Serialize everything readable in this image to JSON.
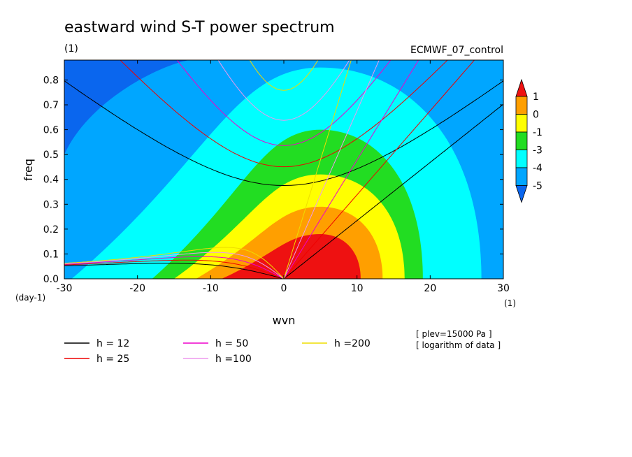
{
  "chart_data": {
    "type": "contour",
    "title": "eastward wind S-T power spectrum",
    "subtitle_left": "(1)",
    "subtitle_right": "ECMWF_07_control",
    "xlabel": "wvn",
    "ylabel": "freq",
    "x_unit": "(1)",
    "y_unit": "(day-1)",
    "xlim": [
      -30,
      30
    ],
    "ylim": [
      0,
      0.88
    ],
    "xticks": [
      "-30",
      "-20",
      "-10",
      "0",
      "10",
      "20",
      "30"
    ],
    "yticks": [
      "0.0",
      "0.1",
      "0.2",
      "0.3",
      "0.4",
      "0.5",
      "0.6",
      "0.7",
      "0.8"
    ],
    "colorbar": {
      "levels": [
        "1",
        "0",
        "-1",
        "-3",
        "-4",
        "-5"
      ],
      "colors": [
        "#ee1111",
        "#ff9f00",
        "#ffff00",
        "#22dd22",
        "#00ffff",
        "#00a6ff",
        "#0a66ee"
      ]
    },
    "contour_field": {
      "peak": [
        5,
        0.08
      ],
      "bands": [
        {
          "level": "-4",
          "color": "#00ffff",
          "x_left": -29,
          "x_right": 27,
          "top": 0.85
        },
        {
          "level": "-3",
          "color": "#22dd22",
          "x_left": -18,
          "x_right": 19,
          "top": 0.6
        },
        {
          "level": "-1",
          "color": "#ffff00",
          "x_left": -15,
          "x_right": 16.5,
          "top": 0.42
        },
        {
          "level": "0",
          "color": "#ff9f00",
          "x_left": -12,
          "x_right": 13.5,
          "top": 0.29
        },
        {
          "level": "1",
          "color": "#ee1111",
          "x_left": -8.5,
          "x_right": 10.5,
          "top": 0.18
        }
      ]
    },
    "dispersion_curves": [
      {
        "name": "h = 12",
        "color": "#000000"
      },
      {
        "name": "h = 25",
        "color": "#ee0000"
      },
      {
        "name": "h = 50",
        "color": "#ee00cc"
      },
      {
        "name": "h =100",
        "color": "#ee99ee"
      },
      {
        "name": "h =200",
        "color": "#eedd00"
      }
    ],
    "annotations": [
      "[ plev=15000 Pa ]",
      "[ logarithm of data ]"
    ]
  }
}
